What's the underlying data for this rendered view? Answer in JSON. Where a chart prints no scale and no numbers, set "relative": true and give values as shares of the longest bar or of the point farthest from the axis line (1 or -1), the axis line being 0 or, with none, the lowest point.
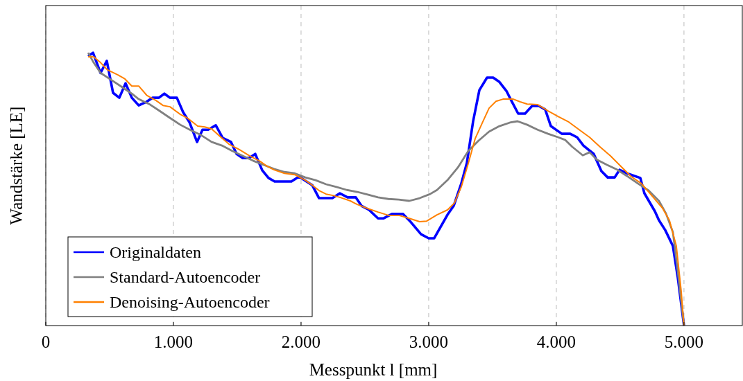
{
  "chart_data": {
    "type": "line",
    "relative": true,
    "xlabel": "Messpunkt l [mm]",
    "ylabel": "Wandstärke [LE]",
    "xlim": [
      0,
      5457
    ],
    "xticks": [
      0,
      {
        "value": 1000,
        "label": "1.000"
      },
      {
        "value": 2000,
        "label": "2.000"
      },
      {
        "value": 3000,
        "label": "3.000"
      },
      {
        "value": 4000,
        "label": "4.000"
      },
      {
        "value": 5000,
        "label": "5.000"
      }
    ],
    "grid": "x",
    "legend": "bottom left",
    "marker": "none",
    "line_style": "solid",
    "series": [
      {
        "name": "Originaldaten",
        "color": "#0000ff",
        "x": [
          332,
          370,
          429,
          478,
          527,
          576,
          625,
          674,
          728,
          788,
          837,
          886,
          929,
          973,
          1027,
          1076,
          1125,
          1185,
          1228,
          1272,
          1332,
          1386,
          1451,
          1495,
          1543,
          1592,
          1641,
          1696,
          1745,
          1793,
          1924,
          1984,
          2087,
          2141,
          2245,
          2304,
          2364,
          2429,
          2473,
          2533,
          2603,
          2647,
          2712,
          2799,
          2853,
          2940,
          3000,
          3043,
          3147,
          3196,
          3255,
          3299,
          3348,
          3397,
          3457,
          3505,
          3554,
          3609,
          3647,
          3701,
          3755,
          3810,
          3864,
          3913,
          3957,
          4043,
          4109,
          4163,
          4212,
          4293,
          4353,
          4402,
          4457,
          4495,
          4565,
          4658,
          4690,
          4772,
          4804,
          4853,
          4913,
          4951,
          5000
        ],
        "values": [
          0.987,
          1.0,
          0.926,
          0.97,
          0.853,
          0.835,
          0.888,
          0.835,
          0.807,
          0.82,
          0.835,
          0.835,
          0.85,
          0.835,
          0.835,
          0.782,
          0.746,
          0.673,
          0.718,
          0.718,
          0.734,
          0.688,
          0.673,
          0.629,
          0.614,
          0.614,
          0.629,
          0.569,
          0.541,
          0.528,
          0.528,
          0.546,
          0.515,
          0.467,
          0.467,
          0.485,
          0.47,
          0.47,
          0.439,
          0.424,
          0.393,
          0.393,
          0.409,
          0.409,
          0.383,
          0.335,
          0.32,
          0.32,
          0.406,
          0.439,
          0.52,
          0.596,
          0.749,
          0.863,
          0.909,
          0.909,
          0.893,
          0.86,
          0.825,
          0.777,
          0.777,
          0.805,
          0.805,
          0.792,
          0.731,
          0.703,
          0.703,
          0.69,
          0.66,
          0.629,
          0.566,
          0.543,
          0.543,
          0.571,
          0.556,
          0.541,
          0.485,
          0.419,
          0.386,
          0.35,
          0.292,
          0.178,
          0
        ]
      },
      {
        "name": "Standard-Autoencoder",
        "color": "#808080",
        "x": [
          332,
          375,
          429,
          511,
          592,
          674,
          728,
          810,
          891,
          973,
          1054,
          1136,
          1217,
          1299,
          1380,
          1462,
          1543,
          1625,
          1707,
          1788,
          1870,
          1951,
          2033,
          2114,
          2196,
          2277,
          2359,
          2440,
          2522,
          2603,
          2685,
          2766,
          2848,
          2929,
          3011,
          3065,
          3147,
          3228,
          3310,
          3391,
          3473,
          3554,
          3636,
          3696,
          3772,
          3853,
          3935,
          4016,
          4071,
          4125,
          4207,
          4261,
          4315,
          4397,
          4478,
          4560,
          4641,
          4723,
          4804,
          4859,
          4913,
          4957,
          5000
        ],
        "values": [
          1.0,
          0.964,
          0.926,
          0.901,
          0.876,
          0.85,
          0.83,
          0.812,
          0.787,
          0.761,
          0.736,
          0.716,
          0.698,
          0.673,
          0.66,
          0.64,
          0.622,
          0.604,
          0.589,
          0.574,
          0.563,
          0.558,
          0.543,
          0.533,
          0.518,
          0.508,
          0.497,
          0.49,
          0.48,
          0.47,
          0.464,
          0.462,
          0.457,
          0.467,
          0.482,
          0.497,
          0.533,
          0.579,
          0.64,
          0.678,
          0.711,
          0.731,
          0.744,
          0.749,
          0.736,
          0.718,
          0.703,
          0.69,
          0.68,
          0.655,
          0.624,
          0.635,
          0.609,
          0.589,
          0.571,
          0.546,
          0.52,
          0.495,
          0.457,
          0.411,
          0.343,
          0.178,
          0
        ]
      },
      {
        "name": "Denoising-Autoencoder",
        "color": "#ff8000",
        "x": [
          332,
          375,
          429,
          484,
          565,
          620,
          674,
          728,
          793,
          864,
          918,
          973,
          1054,
          1109,
          1190,
          1245,
          1299,
          1353,
          1435,
          1516,
          1598,
          1679,
          1734,
          1788,
          1870,
          1951,
          2033,
          2087,
          2141,
          2196,
          2250,
          2304,
          2386,
          2440,
          2522,
          2603,
          2685,
          2766,
          2848,
          2929,
          2984,
          3065,
          3147,
          3201,
          3255,
          3310,
          3364,
          3418,
          3473,
          3527,
          3582,
          3663,
          3717,
          3772,
          3853,
          3935,
          4016,
          4098,
          4179,
          4261,
          4342,
          4424,
          4505,
          4587,
          4668,
          4750,
          4831,
          4886,
          4940,
          4978,
          5000
        ],
        "values": [
          0.985,
          0.985,
          0.964,
          0.937,
          0.919,
          0.904,
          0.878,
          0.878,
          0.843,
          0.825,
          0.807,
          0.802,
          0.774,
          0.761,
          0.731,
          0.728,
          0.721,
          0.698,
          0.665,
          0.645,
          0.622,
          0.602,
          0.584,
          0.571,
          0.558,
          0.553,
          0.533,
          0.515,
          0.495,
          0.482,
          0.477,
          0.47,
          0.457,
          0.444,
          0.429,
          0.416,
          0.404,
          0.404,
          0.393,
          0.381,
          0.383,
          0.406,
          0.424,
          0.449,
          0.508,
          0.594,
          0.685,
          0.741,
          0.797,
          0.822,
          0.83,
          0.83,
          0.82,
          0.812,
          0.81,
          0.787,
          0.766,
          0.746,
          0.718,
          0.69,
          0.655,
          0.622,
          0.584,
          0.546,
          0.52,
          0.475,
          0.431,
          0.386,
          0.292,
          0.127,
          0
        ]
      }
    ]
  }
}
